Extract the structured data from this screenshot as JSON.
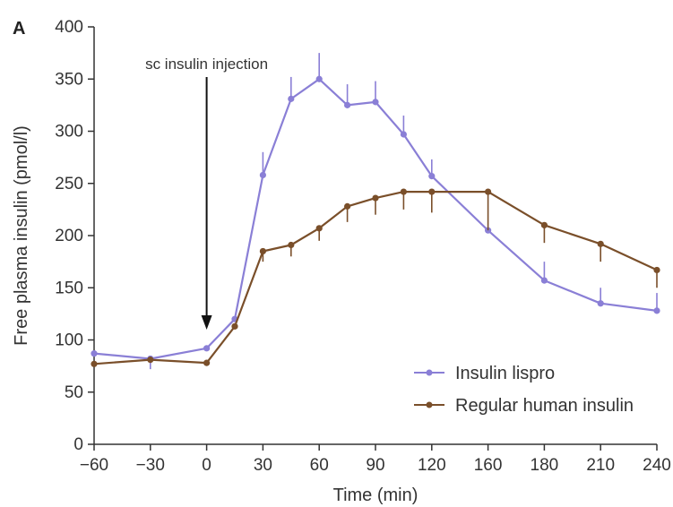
{
  "chart_data": {
    "type": "line",
    "panel_label": "A",
    "title": "",
    "xlabel": "Time (min)",
    "ylabel": "Free plasma insulin (pmol/l)",
    "x_ticks": [
      -60,
      -30,
      0,
      30,
      60,
      90,
      120,
      160,
      180,
      210,
      240
    ],
    "x_tick_labels": [
      "−60",
      "−30",
      "0",
      "30",
      "60",
      "90",
      "120",
      "160",
      "180",
      "210",
      "240"
    ],
    "y_ticks": [
      0,
      50,
      100,
      150,
      200,
      250,
      300,
      350,
      400
    ],
    "ylim": [
      0,
      400
    ],
    "legend_position": "bottom-right",
    "annotation": {
      "text": "sc insulin injection",
      "x": 0
    },
    "series": [
      {
        "name": "Insulin lispro",
        "color": "#8a7fd6",
        "points": [
          {
            "x": -60,
            "y": 87
          },
          {
            "x": -30,
            "y": 82
          },
          {
            "x": 0,
            "y": 92
          },
          {
            "x": 15,
            "y": 120
          },
          {
            "x": 30,
            "y": 258
          },
          {
            "x": 45,
            "y": 331
          },
          {
            "x": 60,
            "y": 350
          },
          {
            "x": 75,
            "y": 325
          },
          {
            "x": 90,
            "y": 328
          },
          {
            "x": 105,
            "y": 297
          },
          {
            "x": 120,
            "y": 257
          },
          {
            "x": 160,
            "y": 205
          },
          {
            "x": 180,
            "y": 157
          },
          {
            "x": 210,
            "y": 135
          },
          {
            "x": 240,
            "y": 128
          }
        ],
        "errors": [
          {
            "x": -60,
            "lo": 87,
            "hi": 87
          },
          {
            "x": -30,
            "lo": 72,
            "hi": 82
          },
          {
            "x": 0,
            "lo": 92,
            "hi": 92
          },
          {
            "x": 15,
            "lo": 120,
            "hi": 120
          },
          {
            "x": 30,
            "lo": 258,
            "hi": 280
          },
          {
            "x": 45,
            "lo": 331,
            "hi": 352
          },
          {
            "x": 60,
            "lo": 350,
            "hi": 375
          },
          {
            "x": 75,
            "lo": 325,
            "hi": 345
          },
          {
            "x": 90,
            "lo": 328,
            "hi": 348
          },
          {
            "x": 105,
            "lo": 297,
            "hi": 315
          },
          {
            "x": 120,
            "lo": 257,
            "hi": 273
          },
          {
            "x": 180,
            "lo": 157,
            "hi": 175
          },
          {
            "x": 210,
            "lo": 135,
            "hi": 150
          },
          {
            "x": 240,
            "lo": 128,
            "hi": 145
          }
        ]
      },
      {
        "name": "Regular human insulin",
        "color": "#7a4f2a",
        "points": [
          {
            "x": -60,
            "y": 77
          },
          {
            "x": -30,
            "y": 81
          },
          {
            "x": 0,
            "y": 78
          },
          {
            "x": 15,
            "y": 113
          },
          {
            "x": 30,
            "y": 185
          },
          {
            "x": 45,
            "y": 191
          },
          {
            "x": 60,
            "y": 207
          },
          {
            "x": 75,
            "y": 228
          },
          {
            "x": 90,
            "y": 236
          },
          {
            "x": 105,
            "y": 242
          },
          {
            "x": 120,
            "y": 242
          },
          {
            "x": 160,
            "y": 242
          },
          {
            "x": 180,
            "y": 210
          },
          {
            "x": 210,
            "y": 192
          },
          {
            "x": 240,
            "y": 167
          }
        ],
        "errors": [
          {
            "x": 30,
            "lo": 175,
            "hi": 185
          },
          {
            "x": 45,
            "lo": 180,
            "hi": 191
          },
          {
            "x": 60,
            "lo": 195,
            "hi": 207
          },
          {
            "x": 75,
            "lo": 213,
            "hi": 228
          },
          {
            "x": 90,
            "lo": 220,
            "hi": 236
          },
          {
            "x": 105,
            "lo": 225,
            "hi": 242
          },
          {
            "x": 120,
            "lo": 222,
            "hi": 242
          },
          {
            "x": 160,
            "lo": 205,
            "hi": 242
          },
          {
            "x": 180,
            "lo": 193,
            "hi": 210
          },
          {
            "x": 210,
            "lo": 175,
            "hi": 192
          },
          {
            "x": 240,
            "lo": 150,
            "hi": 167
          }
        ]
      }
    ]
  }
}
